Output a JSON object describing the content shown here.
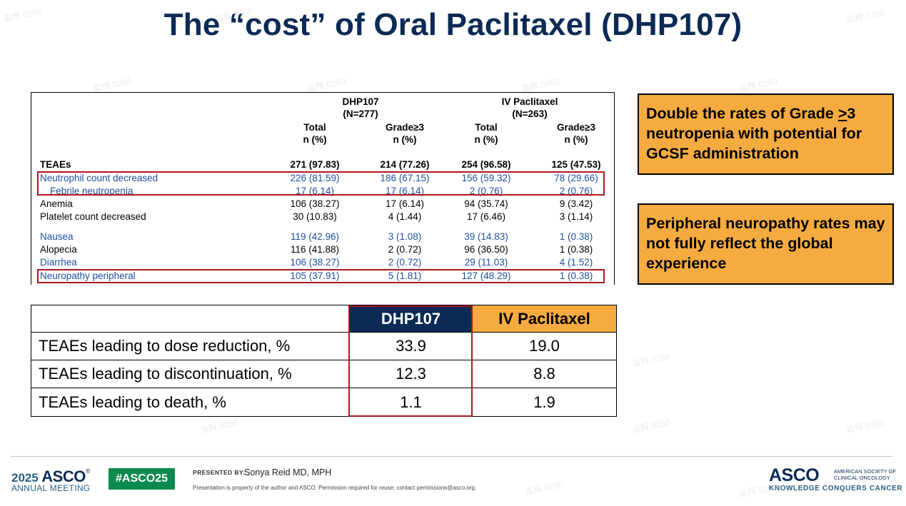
{
  "title": "The “cost” of Oral Paclitaxel (DHP107)",
  "ae_table": {
    "group1": {
      "name": "DHP107",
      "n": "(N=277)"
    },
    "group2": {
      "name": "IV Paclitaxel",
      "n": "(N=263)"
    },
    "col_total": "Total",
    "col_grade": "Grade≥3",
    "col_unit": "n (%)",
    "rows": [
      {
        "label": "TEAEs",
        "v": [
          "271 (97.83)",
          "214 (77.26)",
          "254 (96.58)",
          "125 (47.53)"
        ]
      },
      {
        "label": "Neutrophil count decreased",
        "v": [
          "226 (81.59)",
          "186 (67.15)",
          "156 (59.32)",
          "78 (29.66)"
        ]
      },
      {
        "label": "Febrile neutropenia",
        "v": [
          "17 (6.14)",
          "17 (6.14)",
          "2 (0.76)",
          "2 (0.76)"
        ]
      },
      {
        "label": "Anemia",
        "v": [
          "106 (38.27)",
          "17 (6.14)",
          "94 (35.74)",
          "9 (3.42)"
        ]
      },
      {
        "label": "Platelet count decreased",
        "v": [
          "30 (10.83)",
          "4 (1.44)",
          "17 (6.46)",
          "3 (1.14)"
        ]
      },
      {
        "label": "Nausea",
        "v": [
          "119 (42.96)",
          "3 (1.08)",
          "39 (14.83)",
          "1 (0.38)"
        ]
      },
      {
        "label": "Alopecia",
        "v": [
          "116 (41.88)",
          "2 (0.72)",
          "96 (36.50)",
          "1 (0.38)"
        ]
      },
      {
        "label": "Diarrhea",
        "v": [
          "106 (38.27)",
          "2 (0.72)",
          "29 (11.03)",
          "4 (1.52)"
        ]
      },
      {
        "label": "Neuropathy peripheral",
        "v": [
          "105 (37.91)",
          "5 (1.81)",
          "127 (48.29)",
          "1 (0.38)"
        ]
      }
    ]
  },
  "callouts": {
    "c1_pre": "Double the rates of Grade ",
    "c1_sym": ">",
    "c1_post": "3 neutropenia with potential for GCSF administration",
    "c2": "Peripheral neuropathy rates may not fully reflect the global experience"
  },
  "summary_table": {
    "headers": [
      "DHP107",
      "IV Paclitaxel"
    ],
    "rows": [
      {
        "label": "TEAEs leading to dose reduction, %",
        "dhp": "33.9",
        "iv": "19.0"
      },
      {
        "label": "TEAEs leading to discontinuation, %",
        "dhp": "12.3",
        "iv": "8.8"
      },
      {
        "label": "TEAEs leading to death, %",
        "dhp": "1.1",
        "iv": "1.9"
      }
    ]
  },
  "footer": {
    "year": "2025",
    "asco": "ASCO",
    "reg": "®",
    "annual_meeting": "ANNUAL MEETING",
    "hashtag": "#ASCO25",
    "presented_by": "PRESENTED BY:",
    "presenter": "Sonya Reid MD, MPH",
    "disclaimer": "Presentation is property of the author and ASCO. Permission required for reuse; contact permissions@asco.org.",
    "org_line1": "AMERICAN SOCIETY OF",
    "org_line2": "CLINICAL ONCOLOGY",
    "tagline": "KNOWLEDGE CONQUERS CANCER"
  },
  "watermark": "淼辉 0260"
}
